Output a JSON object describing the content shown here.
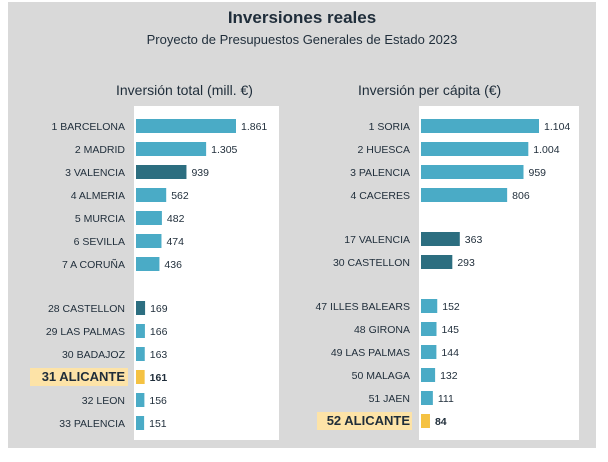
{
  "title": "Inversiones reales",
  "subtitle": "Proyecto de Presupuestos Generales de Estado 2023",
  "colors": {
    "bar_default": "#4aabc6",
    "bar_dark": "#2c6e80",
    "bar_highlight": "#f5c242",
    "label_highlight_bg": "#fde3a7",
    "text": "#1f2d3a"
  },
  "chart_data": [
    {
      "type": "bar",
      "orientation": "horizontal",
      "title": "Inversión total (mill. €)",
      "categories": [
        "1 BARCELONA",
        "2 MADRID",
        "3 VALENCIA",
        "4 ALMERIA",
        "5 MURCIA",
        "6 SEVILLA",
        "7 A CORUÑA",
        "28 CASTELLON",
        "29 LAS PALMAS",
        "30 BADAJOZ",
        "31 ALICANTE",
        "32 LEON",
        "33 PALENCIA"
      ],
      "values": [
        1861,
        1305,
        939,
        562,
        482,
        474,
        436,
        169,
        166,
        163,
        161,
        156,
        151
      ],
      "value_labels": [
        "1.861",
        "1.305",
        "939",
        "562",
        "482",
        "474",
        "436",
        "169",
        "166",
        "163",
        "161",
        "156",
        "151"
      ],
      "bar_style": [
        "default",
        "default",
        "dark",
        "default",
        "default",
        "default",
        "default",
        "dark",
        "default",
        "default",
        "highlight",
        "default",
        "default"
      ],
      "gap_after_index": 6
    },
    {
      "type": "bar",
      "orientation": "horizontal",
      "title": "Inversión per cápita (€)",
      "categories": [
        "1 SORIA",
        "2 HUESCA",
        "3 PALENCIA",
        "4 CACERES",
        "17 VALENCIA",
        "30 CASTELLON",
        "47 ILLES BALEARS",
        "48 GIRONA",
        "49 LAS PALMAS",
        "50 MALAGA",
        "51 JAEN",
        "52 ALICANTE"
      ],
      "values": [
        1104,
        1004,
        959,
        806,
        363,
        293,
        152,
        145,
        144,
        132,
        111,
        84
      ],
      "value_labels": [
        "1.104",
        "1.004",
        "959",
        "806",
        "363",
        "293",
        "152",
        "145",
        "144",
        "132",
        "111",
        "84"
      ],
      "bar_style": [
        "default",
        "default",
        "default",
        "default",
        "dark",
        "dark",
        "default",
        "default",
        "default",
        "default",
        "default",
        "highlight"
      ],
      "gaps": [
        3,
        5
      ]
    }
  ]
}
